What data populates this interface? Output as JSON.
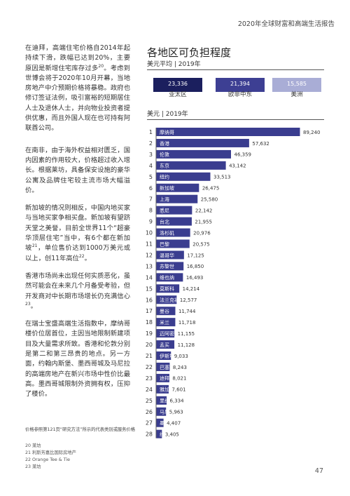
{
  "header": {
    "title": "2020年全球财富和高端生活报告"
  },
  "body_text": {
    "p1": "在迪拜，高端住宅价格自2014年起持续下滑，跌幅已达到20%，主要原因是新增住宅库存过多",
    "p1_sup": "20",
    "p1_cont": "。考虑到世博会将于2020年10月开幕，当地房地产中介预期价格将暴稳。政府也修订签证法例，吸引富裕的短期居住人士及退休人士，并向物业投资者提供优惠，而且外国人现在也可持有阿联酋公司。",
    "p2": "在南非，由于海外权益相对匮乏，国内因素的作用较大，价格超过收入增长。根据莱坊，具备保安设施的豪华公寓及品牌住宅较主流市场大幅溢价。",
    "p3": "新加坡的情况则相反，中国内地买家与当地买家争相买盘。新加坡有望跻天堂之美誉，目前全世界11个“超豪华顶层住宅”当中，有6个都在新加坡",
    "p3_sup": "21",
    "p3_cont": "，单位售价达到1000万美元或以上，创11年高位",
    "p3_sup2": "22",
    "p3_end": "。",
    "p4": "香港市场尚未出现任何实质恶化，虽然可能会在未来几个月备受考验，但开发商对中长期市场增长仍充满信心",
    "p4_sup": "23",
    "p4_end": "。",
    "p5": "在瑞士宝盛高端生活指数中，摩纳哥楼价位居首位，主因当地限制新建项目及大量需求所致。香港和伦敦分别是第二和第三昂贵的地点。另一方面，约翰内斯堡、墨西哥城及马尼拉的高端房地产在新兴市场中性价比最高。墨西哥城限制外资拥有权，压抑了楼价。"
  },
  "source_note": "价格参照第121页“研究方法”所示的代表类别或服务价格",
  "footnotes": [
    "20 莱坊",
    "21 利斯芳嘉比国际房地产",
    "22 Orange Tee & Tie",
    "23 莱坊"
  ],
  "page_number": "47",
  "chart_data": [
    {
      "type": "bar",
      "title": "各地区可负担程度",
      "subtitle": "美元平均 | 2019年",
      "categories": [
        "亚太区",
        "欧非中东",
        "美洲"
      ],
      "values": [
        23336,
        21394,
        15585
      ],
      "value_labels": [
        "23,336",
        "21,394",
        "15,585"
      ],
      "colors": [
        "#1b1f5e",
        "#3d3f93",
        "#a9add6"
      ],
      "label_colors": [
        "#ffffff",
        "#ffffff",
        "#ffffff"
      ]
    },
    {
      "type": "bar",
      "orientation": "horizontal",
      "subtitle": "美元 | 2019年",
      "bar_color": "#3a3d8f",
      "categories": [
        "摩纳哥",
        "香港",
        "伦敦",
        "东京",
        "纽约",
        "新加坡",
        "上海",
        "悉尼",
        "台北",
        "洛杉矶",
        "巴黎",
        "温哥华",
        "苏黎世",
        "维也纳",
        "莫斯科",
        "法兰克福",
        "曼谷",
        "米兰",
        "迈阿密",
        "孟买",
        "伊斯坦布尔",
        "巴塞罗那",
        "迪拜",
        "雅加达",
        "里约热内卢",
        "马尼拉",
        "墨西哥城",
        "约翰内斯堡"
      ],
      "ranks": [
        "1",
        "2",
        "3",
        "4",
        "5",
        "6",
        "7",
        "8",
        "9",
        "10",
        "11",
        "12",
        "13",
        "14",
        "15",
        "16",
        "17",
        "18",
        "19",
        "20",
        "21",
        "22",
        "23",
        "24",
        "25",
        "26",
        "27",
        "28"
      ],
      "values": [
        89240,
        57632,
        46359,
        43142,
        33513,
        26475,
        25580,
        22142,
        21955,
        20976,
        20575,
        17125,
        16850,
        16493,
        14214,
        12577,
        11744,
        11718,
        11155,
        11128,
        9033,
        8243,
        8021,
        7601,
        6334,
        5963,
        4407,
        3405
      ],
      "value_labels": [
        "89,240",
        "57,632",
        "46,359",
        "43,142",
        "33,513",
        "26,475",
        "25,580",
        "22,142",
        "21,955",
        "20,976",
        "20,575",
        "17,125",
        "16,850",
        "16,493",
        "14,214",
        "12,577",
        "11,744",
        "11,718",
        "11,155",
        "11,128",
        "9,033",
        "8,243",
        "8,021",
        "7,601",
        "6,334",
        "5,963",
        "4,407",
        "3,405"
      ]
    }
  ]
}
